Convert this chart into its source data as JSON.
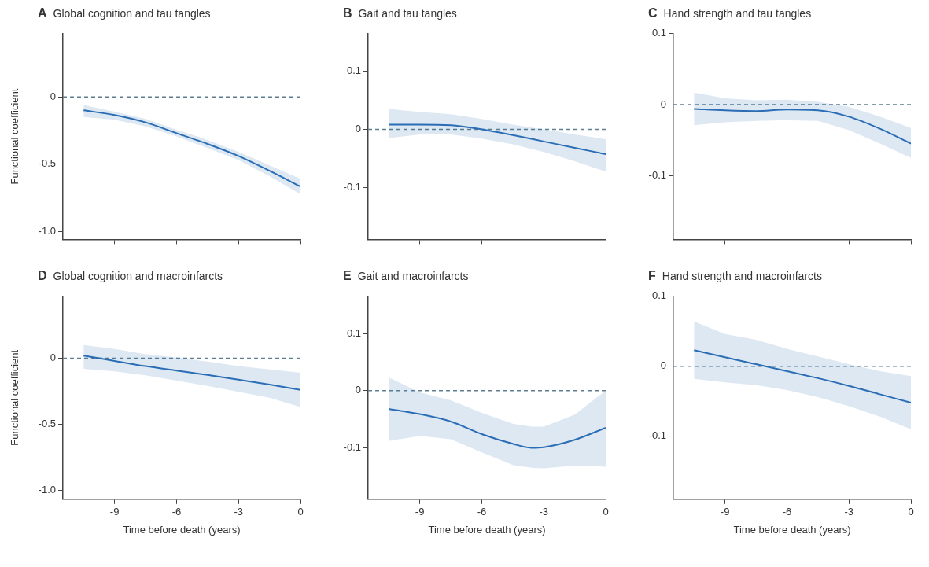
{
  "chart_data": [
    {
      "type": "line",
      "title": "A Global cognition and tau tangles",
      "ylabel": "Functional coefficient",
      "xlim": [
        -11.5,
        0
      ],
      "xticks": [
        {
          "value": -9,
          "label": null
        },
        {
          "value": -6,
          "label": null
        },
        {
          "value": -3,
          "label": null
        },
        {
          "value": 0,
          "label": null
        }
      ],
      "ylim": [
        -1.06,
        0.47
      ],
      "yticks": [
        0,
        -0.5,
        {
          "value": -1,
          "label": "-1.0"
        }
      ],
      "tick_labels": "y",
      "x": [
        -10.5,
        -9,
        -7.5,
        -6,
        -4.5,
        -3,
        -1.5,
        0
      ],
      "series": [
        {
          "color": "#2a6db5",
          "values": [
            -0.1,
            -0.135,
            -0.19,
            -0.27,
            -0.35,
            -0.44,
            -0.55,
            -0.667
          ],
          "lower": [
            -0.15,
            -0.17,
            -0.22,
            -0.295,
            -0.38,
            -0.47,
            -0.59,
            -0.725
          ],
          "upper": [
            -0.06,
            -0.11,
            -0.165,
            -0.245,
            -0.32,
            -0.41,
            -0.51,
            -0.61
          ]
        }
      ],
      "ref_lines": [
        {
          "axis": "y",
          "value": 0,
          "color": "#5e7f91",
          "line_style": "dashed"
        }
      ]
    },
    {
      "type": "line",
      "title": "B Gait and tau tangles",
      "xlim": [
        -11.5,
        0
      ],
      "xticks": [
        {
          "value": -9,
          "label": null
        },
        {
          "value": -6,
          "label": null
        },
        {
          "value": -3,
          "label": null
        },
        {
          "value": 0,
          "label": null
        }
      ],
      "ylim": [
        -0.19,
        0.165
      ],
      "yticks": [
        0.1,
        0,
        -0.1
      ],
      "tick_labels": "y",
      "x": [
        -10.5,
        -9,
        -7.5,
        -6,
        -4.5,
        -3,
        -1.5,
        0
      ],
      "series": [
        {
          "color": "#2a6db5",
          "values": [
            0.008,
            0.008,
            0.007,
            0,
            -0.01,
            -0.021,
            -0.032,
            -0.043
          ],
          "lower": [
            -0.015,
            -0.009,
            -0.009,
            -0.016,
            -0.026,
            -0.039,
            -0.055,
            -0.073
          ],
          "upper": [
            0.035,
            0.03,
            0.026,
            0.018,
            0.008,
            0,
            -0.009,
            -0.017
          ]
        }
      ],
      "ref_lines": [
        {
          "axis": "y",
          "value": 0,
          "color": "#5e7f91",
          "line_style": "dashed"
        }
      ]
    },
    {
      "type": "line",
      "title": "C Hand strength and tau tangles",
      "xlim": [
        -11.5,
        0
      ],
      "xticks": [
        {
          "value": -9,
          "label": null
        },
        {
          "value": -6,
          "label": null
        },
        {
          "value": -3,
          "label": null
        },
        {
          "value": 0,
          "label": null
        }
      ],
      "ylim": [
        -0.19,
        0.1
      ],
      "yticks": [
        0.1,
        0,
        -0.1
      ],
      "tick_labels": "y",
      "x": [
        -10.5,
        -9,
        -7.5,
        -6,
        -4.5,
        -3,
        -1.5,
        0
      ],
      "series": [
        {
          "color": "#2a6db5",
          "values": [
            -0.006,
            -0.008,
            -0.009,
            -0.007,
            -0.008,
            -0.017,
            -0.034,
            -0.055
          ],
          "lower": [
            -0.029,
            -0.025,
            -0.023,
            -0.022,
            -0.023,
            -0.036,
            -0.055,
            -0.075
          ],
          "upper": [
            0.017,
            0.009,
            0.006,
            0.007,
            0.004,
            -0.003,
            -0.017,
            -0.033
          ]
        }
      ],
      "ref_lines": [
        {
          "axis": "y",
          "value": 0,
          "color": "#5e7f91",
          "line_style": "dashed"
        }
      ]
    },
    {
      "type": "line",
      "title": "D Global cognition and macroinfarcts",
      "xlabel": "Time before death (years)",
      "ylabel": "Functional coefficient",
      "xlim": [
        -11.5,
        0
      ],
      "xticks": [
        -9,
        -6,
        -3,
        0
      ],
      "ylim": [
        -1.07,
        0.47
      ],
      "yticks": [
        0,
        -0.5,
        {
          "value": -1,
          "label": "-1.0"
        }
      ],
      "x": [
        -10.5,
        -9,
        -7.5,
        -6,
        -4.5,
        -3,
        -1.5,
        0
      ],
      "series": [
        {
          "color": "#2a6db5",
          "values": [
            0.02,
            -0.02,
            -0.06,
            -0.094,
            -0.127,
            -0.163,
            -0.2,
            -0.24
          ],
          "lower": [
            -0.08,
            -0.1,
            -0.13,
            -0.17,
            -0.21,
            -0.255,
            -0.3,
            -0.37
          ],
          "upper": [
            0.1,
            0.07,
            0.03,
            0.006,
            -0.025,
            -0.06,
            -0.085,
            -0.11
          ]
        }
      ],
      "ref_lines": [
        {
          "axis": "y",
          "value": 0,
          "color": "#5e7f91",
          "line_style": "dashed"
        }
      ]
    },
    {
      "type": "line",
      "title": "E Gait and macroinfarcts",
      "xlabel": "Time before death (years)",
      "xlim": [
        -11.5,
        0
      ],
      "xticks": [
        -9,
        -6,
        -3,
        0
      ],
      "ylim": [
        -0.19,
        0.165
      ],
      "yticks": [
        0.1,
        0,
        -0.1
      ],
      "x": [
        -10.5,
        -9,
        -7.5,
        -6,
        -4.5,
        -3.6,
        -3,
        -1.5,
        0
      ],
      "series": [
        {
          "color": "#2a6db5",
          "values": [
            -0.032,
            -0.041,
            -0.054,
            -0.076,
            -0.093,
            -0.1,
            -0.099,
            -0.086,
            -0.065
          ],
          "lower": [
            -0.088,
            -0.079,
            -0.085,
            -0.108,
            -0.13,
            -0.135,
            -0.136,
            -0.131,
            -0.133
          ],
          "upper": [
            0.023,
            -0.003,
            -0.017,
            -0.039,
            -0.058,
            -0.063,
            -0.063,
            -0.042,
            0
          ]
        }
      ],
      "ref_lines": [
        {
          "axis": "y",
          "value": 0,
          "color": "#5e7f91",
          "line_style": "dashed"
        }
      ]
    },
    {
      "type": "line",
      "title": "F Hand strength and macroinfarcts",
      "xlabel": "Time before death (years)",
      "xlim": [
        -11.5,
        0
      ],
      "xticks": [
        -9,
        -6,
        -3,
        0
      ],
      "ylim": [
        -0.19,
        0.1
      ],
      "yticks": [
        0.1,
        0,
        -0.1
      ],
      "x": [
        -10.5,
        -9,
        -7.5,
        -6,
        -4.5,
        -3,
        -1.5,
        0
      ],
      "series": [
        {
          "color": "#2a6db5",
          "values": [
            0.023,
            0.013,
            0.003,
            -0.007,
            -0.017,
            -0.028,
            -0.04,
            -0.052
          ],
          "lower": [
            -0.018,
            -0.023,
            -0.027,
            -0.034,
            -0.044,
            -0.057,
            -0.072,
            -0.09
          ],
          "upper": [
            0.064,
            0.046,
            0.038,
            0.025,
            0.014,
            0.003,
            -0.007,
            -0.014
          ]
        }
      ],
      "ref_lines": [
        {
          "axis": "y",
          "value": 0,
          "color": "#5e7f91",
          "line_style": "dashed"
        }
      ]
    }
  ]
}
